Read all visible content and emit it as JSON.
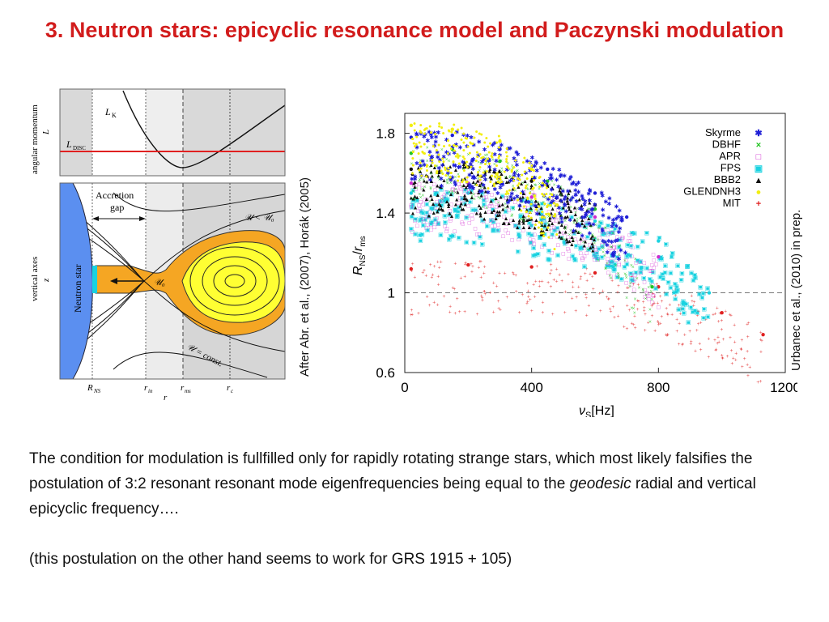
{
  "title": "3. Neutron stars: epicyclic resonance model and Paczynski modulation",
  "left_figure": {
    "top_ylabel": "angular momentum",
    "top_yvar": "L",
    "lk_label": "L",
    "lk_sub": "K",
    "ldisc_label": "L",
    "ldisc_sub": "DISC",
    "bottom_ylabel": "vertical axes",
    "bottom_yvar": "z",
    "accretion_gap": "Accretion",
    "accretion_gap2": "gap",
    "neutron_star": "Neutron star",
    "u_lt": "𝒰 < 𝒰₀",
    "u0": "𝒰₀",
    "u_const": "𝒰 = const.",
    "x_ticks": [
      "R",
      "r",
      "r",
      "r"
    ],
    "x_subs": [
      "NS",
      "in",
      "ms",
      "c"
    ],
    "xvar": "r"
  },
  "left_caption": "After Abr. et al., (2007), Horák (2005)",
  "right_caption": "Urbanec et al., (2010) in prep.",
  "chart_data": {
    "type": "scatter",
    "xlabel": "ν",
    "xlabel_sub": "S",
    "xlabel_unit": "[Hz]",
    "ylabel": "R",
    "ylabel_sub_num": "NS",
    "ylabel_den": "r",
    "ylabel_sub_den": "ms",
    "xlim": [
      0,
      1200
    ],
    "ylim": [
      0.6,
      1.9
    ],
    "x_ticks": [
      "0",
      "400",
      "800",
      "1200"
    ],
    "y_ticks": [
      "0.6",
      "1",
      "1.4",
      "1.8"
    ],
    "reference_line": 1,
    "legend_position": "top-right",
    "series": [
      {
        "name": "Skyrme",
        "color": "#1e1ed6",
        "marker": "✱",
        "x": [
          20,
          150,
          300,
          450,
          600,
          700
        ],
        "y": [
          1.78,
          1.79,
          1.72,
          1.62,
          1.5,
          1.38
        ]
      },
      {
        "name": "DBHF",
        "color": "#22c422",
        "marker": "×",
        "x": [
          20,
          150,
          300,
          450,
          600,
          780
        ],
        "y": [
          1.7,
          1.72,
          1.66,
          1.56,
          1.42,
          1.03
        ]
      },
      {
        "name": "APR",
        "color": "#d02ad0",
        "marker": "□",
        "x": [
          20,
          200,
          400,
          600,
          800
        ],
        "y": [
          1.55,
          1.55,
          1.48,
          1.38,
          1.18
        ]
      },
      {
        "name": "FPS",
        "color": "#19d2e0",
        "marker": "▣",
        "x": [
          20,
          200,
          400,
          600,
          800,
          960
        ],
        "y": [
          1.5,
          1.5,
          1.44,
          1.36,
          1.26,
          1.0
        ]
      },
      {
        "name": "BBB2",
        "color": "#111111",
        "marker": "▲",
        "x": [
          20,
          200,
          400,
          600
        ],
        "y": [
          1.62,
          1.63,
          1.56,
          1.44
        ]
      },
      {
        "name": "GLENDNH3",
        "color": "#f2ee10",
        "marker": "●",
        "x": [
          20,
          150,
          300,
          400,
          480
        ],
        "y": [
          1.84,
          1.82,
          1.76,
          1.62,
          1.44
        ]
      },
      {
        "name": "MIT",
        "color": "#e02020",
        "marker": "+",
        "x": [
          20,
          200,
          400,
          600,
          800,
          1000,
          1130
        ],
        "y": [
          1.12,
          1.14,
          1.13,
          1.1,
          1.03,
          0.9,
          0.79
        ]
      }
    ]
  },
  "paragraph1_a": "The condition for modulation is fullfilled only for rapidly rotating strange stars, which most likely falsifies the postulation of 3:2 resonant resonant mode eigenfrequencies being equal to the ",
  "paragraph1_em": "geodesic",
  "paragraph1_b": " radial and vertical epicyclic frequency….",
  "paragraph2": "(this postulation on the other hand seems to work for GRS 1915 + 105)"
}
